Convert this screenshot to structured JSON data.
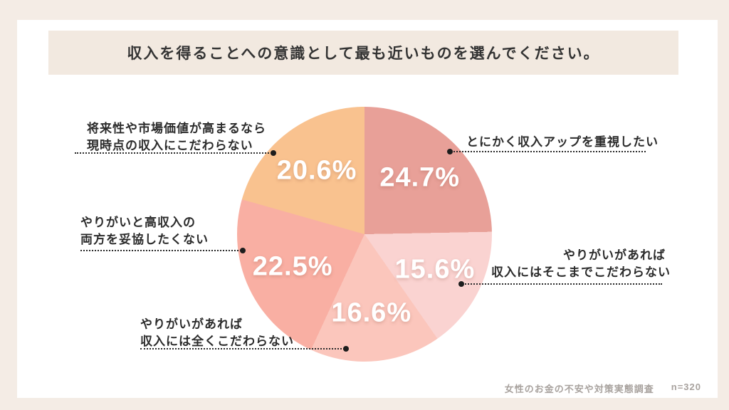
{
  "title": "収入を得ることへの意識として最も近いものを選んでください。",
  "footer": {
    "source": "女性のお金の不安や対策実態調査",
    "sample": "n=320"
  },
  "colors": {
    "background": "#f4ece5",
    "card": "#ffffff",
    "title_band": "#f2e9e0",
    "callout_text": "#2b2b2b",
    "percent_text": "#ffffff",
    "footer_text": "#a8a29e"
  },
  "chart_data": {
    "type": "pie",
    "title": "収入を得ることへの意識として最も近いものを選んでください。",
    "start_angle_deg": 0,
    "direction": "clockwise",
    "total": 100.0,
    "slices": [
      {
        "label": "とにかく収入アップを重視したい",
        "value": 24.7,
        "display": "24.7%",
        "color": "#e8a098"
      },
      {
        "label": "やりがいがあれば収入にはそこまでこだわらない",
        "value": 15.6,
        "display": "15.6%",
        "color": "#fad3d1"
      },
      {
        "label": "やりがいがあれば収入には全くこだわらない",
        "value": 16.6,
        "display": "16.6%",
        "color": "#fbc6bc"
      },
      {
        "label": "やりがいと高収入の両方を妥協したくない",
        "value": 22.5,
        "display": "22.5%",
        "color": "#f9afa3"
      },
      {
        "label": "将来性や市場価値が高まるなら現時点の収入にこだわらない",
        "value": 20.6,
        "display": "20.6%",
        "color": "#f9c28f"
      }
    ]
  },
  "callouts": {
    "income_up": {
      "line1": "とにかく収入アップを重視したい"
    },
    "future_value": {
      "line1": "将来性や市場価値が高まるなら",
      "line2": "現時点の収入にこだわらない"
    },
    "somewhat": {
      "line1": "やりがいがあれば",
      "line2": "収入にはそこまでこだわらない"
    },
    "no_compromise": {
      "line1": "やりがいと高収入の",
      "line2": "両方を妥協したくない"
    },
    "not_at_all": {
      "line1": "やりがいがあれば",
      "line2": "収入には全くこだわらない"
    }
  }
}
